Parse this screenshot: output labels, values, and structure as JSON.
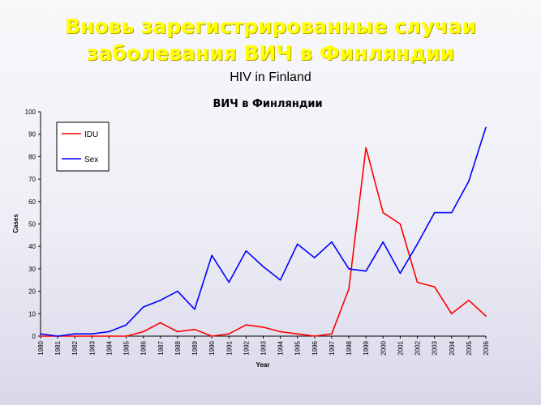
{
  "slide": {
    "title_line1": "Вновь зарегистрированные случаи",
    "title_line2": "заболевания ВИЧ в Финляндии",
    "subtitle": "HIV in Finland"
  },
  "chart_data": {
    "type": "line",
    "title": "ВИЧ в Финляндии",
    "xlabel": "Year",
    "ylabel": "Cases",
    "ylim": [
      0,
      100
    ],
    "yticks": [
      0,
      10,
      20,
      30,
      40,
      50,
      60,
      70,
      80,
      90,
      100
    ],
    "grid": false,
    "legend_position": "top-left",
    "x": [
      "1980",
      "1981",
      "1982",
      "1983",
      "1984",
      "1985",
      "1986",
      "1987",
      "1988",
      "1989",
      "1990",
      "1991",
      "1992",
      "1993",
      "1994",
      "1995",
      "1996",
      "1997",
      "1998",
      "1999",
      "2000",
      "2001",
      "2002",
      "2003",
      "2004",
      "2005",
      "2006"
    ],
    "series": [
      {
        "name": "IDU",
        "color": "#ff0000",
        "values": [
          0,
          0,
          0,
          0,
          0,
          0,
          2,
          6,
          2,
          3,
          0,
          1,
          5,
          4,
          2,
          1,
          0,
          1,
          21,
          84,
          55,
          50,
          24,
          22,
          10,
          16,
          9
        ]
      },
      {
        "name": "Sex",
        "color": "#0000ff",
        "values": [
          1,
          0,
          1,
          1,
          2,
          5,
          13,
          16,
          20,
          12,
          36,
          24,
          38,
          31,
          25,
          41,
          35,
          42,
          30,
          29,
          42,
          28,
          41,
          55,
          55,
          69,
          93
        ]
      }
    ]
  }
}
